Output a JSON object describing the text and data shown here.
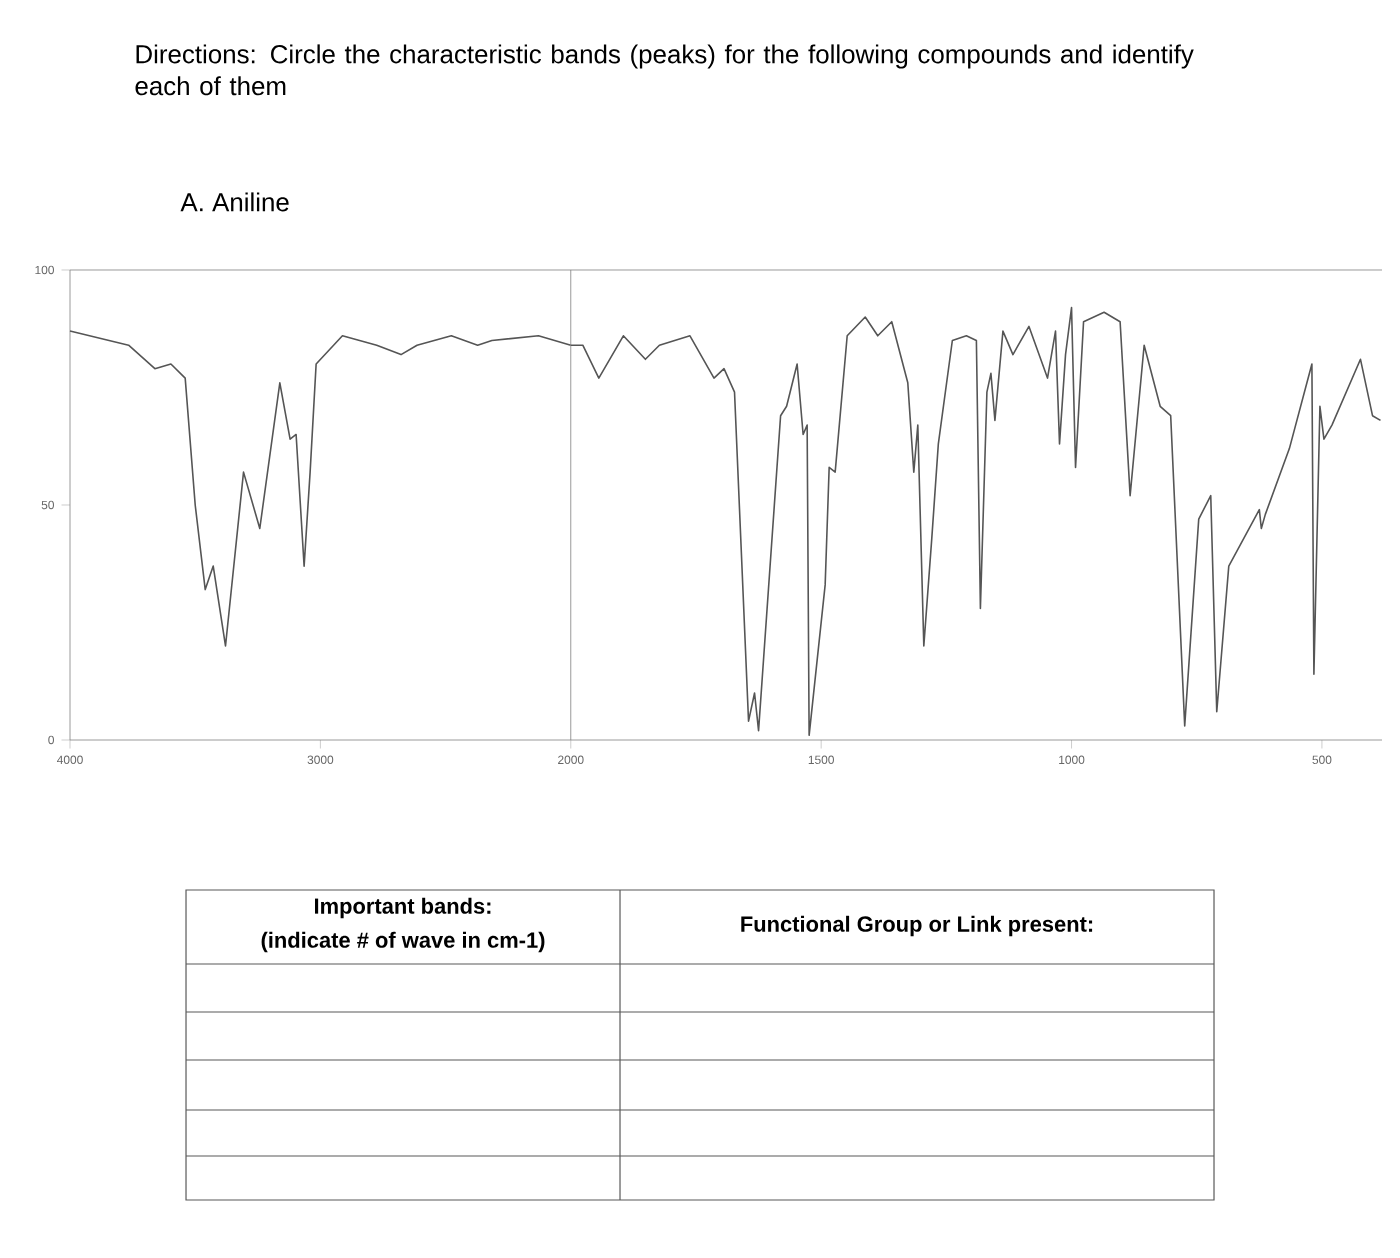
{
  "chart_data": [
    {
      "type": "line",
      "title": "Directions: Circle the characteristic bands (peaks) for the following compounds and identify each of them",
      "subtitle": "A. Aniline",
      "annotations": [
        "Important bands:",
        "(indicate # of wave in cm-1)",
        "Functional Group or Link present:"
      ],
      "x": [
        4000,
        3766,
        3661,
        3597,
        3540,
        3500,
        3460,
        3428,
        3379,
        3307,
        3242,
        3162,
        3121,
        3097,
        3065,
        3041,
        3017,
        2912,
        2775,
        2678,
        2614,
        2477,
        2372,
        2315,
        2129,
        2000
      ],
      "values": [
        87,
        84,
        79,
        80,
        77,
        50,
        32,
        37,
        20,
        57,
        45,
        76,
        64,
        65,
        37,
        57,
        80,
        86,
        84,
        82,
        84,
        86,
        84,
        85,
        86,
        84
      ],
      "color": "#555555",
      "xlim": [
        4000,
        2000
      ],
      "xticks": [
        4000,
        3000,
        2000
      ],
      "ylim": [
        0,
        100
      ],
      "yticks": [
        0,
        50,
        100
      ],
      "grid": false,
      "marker": "none",
      "line_style": "solid"
    },
    {
      "type": "line",
      "x": [
        2000,
        1976,
        1944,
        1895,
        1851,
        1823,
        1762,
        1714,
        1694,
        1673,
        1645,
        1633,
        1625,
        1581,
        1569,
        1548,
        1536,
        1528,
        1524,
        1492,
        1484,
        1472,
        1448,
        1412,
        1387,
        1359,
        1327,
        1315,
        1307,
        1295,
        1279,
        1266,
        1238,
        1210,
        1190,
        1182,
        1169,
        1161,
        1153,
        1137,
        1117,
        1085,
        1048,
        1032,
        1024,
        1012,
        1000,
        992,
        976,
        935,
        903,
        883,
        855,
        823,
        802,
        774,
        746,
        722,
        710,
        686,
        625,
        621,
        613,
        565,
        520,
        516,
        504,
        496,
        480,
        423,
        399,
        383
      ],
      "values": [
        84,
        84,
        77,
        86,
        81,
        84,
        86,
        77,
        79,
        74,
        4,
        10,
        2,
        69,
        71,
        80,
        65,
        67,
        1,
        33,
        58,
        57,
        86,
        90,
        86,
        89,
        76,
        57,
        67,
        20,
        43,
        63,
        85,
        86,
        85,
        28,
        74,
        78,
        68,
        87,
        82,
        88,
        77,
        87,
        63,
        82,
        92,
        58,
        89,
        91,
        89,
        52,
        84,
        71,
        69,
        3,
        47,
        52,
        6,
        37,
        49,
        45,
        48,
        62,
        80,
        14,
        71,
        64,
        67,
        81,
        69,
        68
      ],
      "color": "#555555",
      "xlim": [
        2000,
        380
      ],
      "xticks": [
        1500,
        1000,
        500
      ],
      "ylim": [
        0,
        100
      ],
      "tick_labels": "x",
      "marker": "none",
      "line_style": "solid"
    }
  ]
}
